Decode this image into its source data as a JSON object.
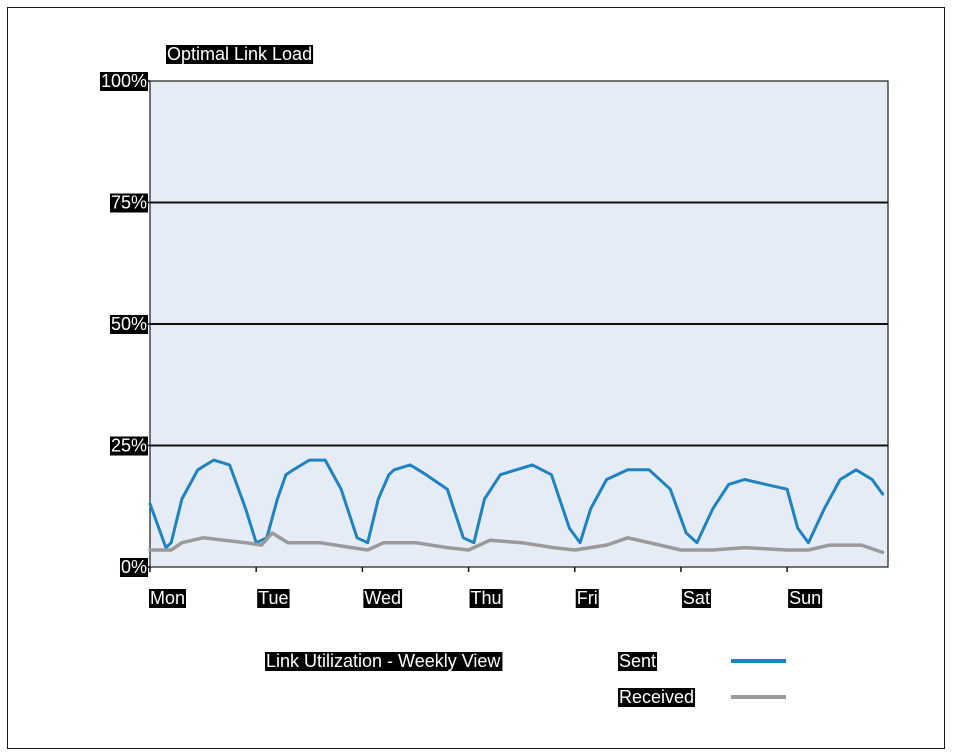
{
  "chart_data": {
    "type": "line",
    "title": "Optimal Link Load",
    "xlabel": "Link Utilization - Weekly View",
    "ylabel": "",
    "ylim": [
      0,
      100
    ],
    "y_ticks": [
      "100%",
      "75%",
      "50%",
      "25%",
      "0%"
    ],
    "x_ticks": [
      "Mon",
      "Tue",
      "Wed",
      "Thu",
      "Fri",
      "Sat",
      "Sun"
    ],
    "grid": true,
    "legend_position": "bottom-right",
    "colors": {
      "plot_background": "#e5ecf6",
      "Sent": "#1f82c1",
      "Received": "#9a9a9a"
    },
    "x_units": "days since start of Mon",
    "series": [
      {
        "name": "Sent",
        "x": [
          0,
          0.1,
          0.15,
          0.2,
          0.3,
          0.45,
          0.6,
          0.75,
          0.9,
          1.0,
          1.1,
          1.2,
          1.28,
          1.35,
          1.5,
          1.65,
          1.8,
          1.95,
          2.05,
          2.15,
          2.25,
          2.3,
          2.45,
          2.6,
          2.8,
          2.95,
          3.05,
          3.15,
          3.3,
          3.45,
          3.6,
          3.78,
          3.95,
          4.05,
          4.15,
          4.3,
          4.5,
          4.7,
          4.9,
          5.05,
          5.15,
          5.3,
          5.45,
          5.6,
          5.8,
          6.0,
          6.1,
          6.2,
          6.35,
          6.5,
          6.65,
          6.8,
          6.9
        ],
        "y": [
          13,
          7,
          4,
          5,
          14,
          20,
          22,
          21,
          12,
          5,
          6,
          14,
          19,
          20,
          22,
          22,
          16,
          6,
          5,
          14,
          19,
          20,
          21,
          19,
          16,
          6,
          5,
          14,
          19,
          20,
          21,
          19,
          8,
          5,
          12,
          18,
          20,
          20,
          16,
          7,
          5,
          12,
          17,
          18,
          17,
          16,
          8,
          5,
          12,
          18,
          20,
          18,
          15
        ]
      },
      {
        "name": "Received",
        "x": [
          0,
          0.2,
          0.3,
          0.5,
          0.7,
          0.9,
          1.05,
          1.15,
          1.3,
          1.6,
          1.9,
          2.05,
          2.2,
          2.5,
          2.8,
          3.0,
          3.2,
          3.5,
          3.8,
          4.0,
          4.3,
          4.5,
          4.8,
          5.0,
          5.3,
          5.6,
          6.0,
          6.2,
          6.4,
          6.7,
          6.9
        ],
        "y": [
          3.5,
          3.5,
          5,
          6,
          5.5,
          5,
          4.5,
          7,
          5,
          5,
          4,
          3.5,
          5,
          5,
          4,
          3.5,
          5.5,
          5,
          4,
          3.5,
          4.5,
          6,
          4.5,
          3.5,
          3.5,
          4,
          3.5,
          3.5,
          4.5,
          4.5,
          3
        ]
      }
    ]
  }
}
